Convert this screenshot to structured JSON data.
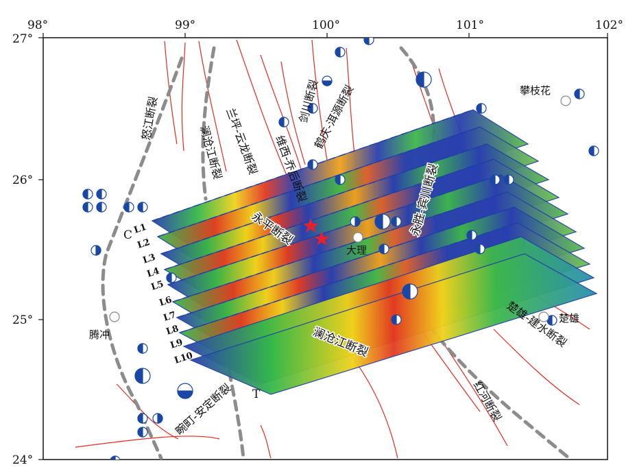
{
  "longitude_ticks": [
    "98°",
    "99°",
    "100°",
    "101°",
    "102°"
  ],
  "latitude_ticks": [
    "27°",
    "26°",
    "25°",
    "24°"
  ],
  "cities": [
    {
      "name": "攀枝花",
      "lon": 101.65,
      "lat": 26.55
    },
    {
      "name": "大理",
      "lon": 100.22,
      "lat": 25.6
    },
    {
      "name": "楚雄",
      "lon": 101.53,
      "lat": 25.03
    },
    {
      "name": "腾冲",
      "lon": 98.49,
      "lat": 25.02
    }
  ],
  "faults": {
    "nujiang": "怒江断裂",
    "lancang_north": "澜沧江断裂",
    "lanping_yunlong": "兰坪-云龙断裂",
    "weixi_qiaohou": "维西-乔后断裂",
    "jianchuan": "剑川断裂",
    "heqing_eryuan": "鹤庆-洱源断裂",
    "yongsheng_binchuan": "永胜-宾川断裂",
    "yongping": "永平断裂",
    "lancang_south": "澜沧江断裂",
    "chuxiong_jianshui": "楚雄-建水断裂",
    "red_river": "红河断裂",
    "wanding_anding": "畹町-安定断裂"
  },
  "profiles": {
    "start_letter": "C",
    "end_letter": "T",
    "labels": [
      "L1",
      "L2",
      "L3",
      "L4",
      "L5",
      "L6",
      "L7",
      "L8",
      "L9",
      "L10"
    ]
  },
  "colors": {
    "ocean_blue": "#1f3fa8",
    "fault_red": "#e8281e",
    "dashed_gray": "#8c8c8c",
    "star_red": "#e8202a",
    "focal_blue": "#1a47a6"
  }
}
